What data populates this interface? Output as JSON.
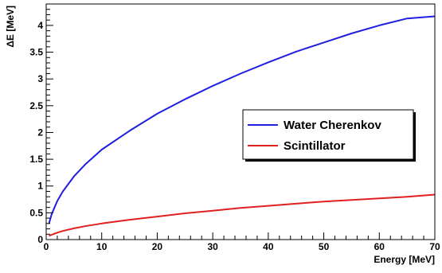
{
  "chart_data": {
    "type": "line",
    "xlabel": "Energy [MeV]",
    "ylabel": "ΔE [MeV]",
    "xlim": [
      0,
      70
    ],
    "ylim": [
      0,
      4.4
    ],
    "x_ticks": [
      0,
      10,
      20,
      30,
      40,
      50,
      60,
      70
    ],
    "y_ticks": [
      0,
      0.5,
      1,
      1.5,
      2,
      2.5,
      3,
      3.5,
      4
    ],
    "grid": false,
    "legend_position": "center-right",
    "series": [
      {
        "name": "Water Cherenkov",
        "color": "#1f1fe0",
        "x": [
          0.5,
          1,
          2,
          3,
          5,
          7,
          10,
          15,
          20,
          25,
          30,
          35,
          40,
          45,
          50,
          55,
          60,
          65,
          70
        ],
        "y": [
          0.3,
          0.48,
          0.72,
          0.9,
          1.18,
          1.4,
          1.68,
          2.03,
          2.35,
          2.62,
          2.87,
          3.1,
          3.31,
          3.51,
          3.68,
          3.85,
          4.0,
          4.13,
          4.17
        ]
      },
      {
        "name": "Scintillator",
        "color": "#e01f1f",
        "x": [
          0.5,
          1,
          2,
          3,
          5,
          7,
          10,
          15,
          20,
          25,
          30,
          35,
          40,
          45,
          50,
          55,
          60,
          65,
          70
        ],
        "y": [
          0.07,
          0.09,
          0.13,
          0.16,
          0.21,
          0.25,
          0.3,
          0.37,
          0.43,
          0.49,
          0.54,
          0.59,
          0.63,
          0.67,
          0.71,
          0.74,
          0.77,
          0.8,
          0.84
        ]
      }
    ]
  }
}
